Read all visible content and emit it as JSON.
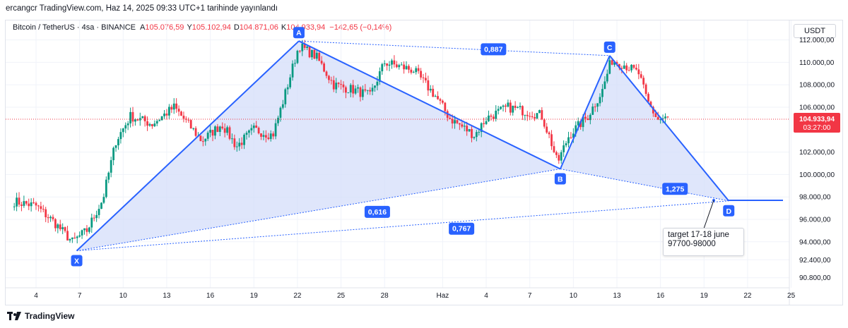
{
  "header": {
    "publish_line": "ercangcr TradingView.com, Haz 14, 2025 09:33 UTC+1 tarihinde yayınlandı"
  },
  "legend": {
    "symbol": "Bitcoin / TetherUS · 4sa · BINANCE",
    "open_label": "A",
    "open_value": "105.076,59",
    "high_label": "Y",
    "high_value": "105.102,94",
    "low_label": "D",
    "low_value": "104.871,06",
    "close_label": "K",
    "close_value": "104.933,94",
    "change": "−142,65 (−0,14%)"
  },
  "price_axis": {
    "currency": "USDT",
    "current_price": "104.933,94",
    "countdown": "03:27:00"
  },
  "annotation": {
    "line1": "target 17-18 june",
    "line2": "97700-98000"
  },
  "footer": {
    "brand": "TradingView"
  },
  "colors": {
    "up": "#089981",
    "down": "#f23645",
    "pattern": "#2962ff",
    "pattern_fill": "#d4ddfa",
    "price_line": "#f23645"
  },
  "chart_data": {
    "type": "candlestick",
    "title": "Bitcoin / TetherUS · 4sa · BINANCE",
    "ylim": [
      89900,
      113800
    ],
    "y_ticks": [
      "112.000,00",
      "110.000,00",
      "108.000,00",
      "106.000,00",
      "102.000,00",
      "100.000,00",
      "98.000,00",
      "96.000,00",
      "94.000,00",
      "92.400,00",
      "90.800,00"
    ],
    "y_tick_values": [
      112000,
      110000,
      108000,
      106000,
      102000,
      100000,
      98000,
      96000,
      94000,
      92400,
      90800
    ],
    "x_ticks": [
      "4",
      "7",
      "10",
      "13",
      "16",
      "19",
      "22",
      "25",
      "28",
      "Haz",
      "4",
      "7",
      "10",
      "13",
      "16",
      "19",
      "22",
      "25"
    ],
    "x_tick_days": [
      0,
      3,
      6,
      9,
      12,
      15,
      18,
      21,
      24,
      28,
      31,
      34,
      37,
      40,
      43,
      46,
      49,
      52
    ],
    "current_price": 104933.94,
    "pattern": {
      "name": "harmonic",
      "points": [
        {
          "label": "X",
          "day": 2.8,
          "price": 93200
        },
        {
          "label": "A",
          "day": 18.1,
          "price": 111900
        },
        {
          "label": "B",
          "day": 36.1,
          "price": 100500
        },
        {
          "label": "C",
          "day": 39.5,
          "price": 110600
        },
        {
          "label": "D",
          "day": 47.7,
          "price": 97650
        }
      ],
      "ratios": [
        {
          "value": "0,887",
          "day": 31.5,
          "price": 111200
        },
        {
          "value": "0,616",
          "day": 23.5,
          "price": 96700
        },
        {
          "value": "0,767",
          "day": 29.3,
          "price": 95200
        },
        {
          "value": "1,275",
          "day": 44.0,
          "price": 98750
        }
      ],
      "target_line_price": 97700
    },
    "anchors": [
      [
        -1.5,
        97600
      ],
      [
        0,
        97200
      ],
      [
        1.2,
        95800
      ],
      [
        2.5,
        94000
      ],
      [
        3.5,
        95000
      ],
      [
        4.6,
        97800
      ],
      [
        5.5,
        103000
      ],
      [
        6.5,
        105200
      ],
      [
        8,
        104500
      ],
      [
        9.5,
        106000
      ],
      [
        10.8,
        104000
      ],
      [
        11.4,
        103000
      ],
      [
        12.8,
        104500
      ],
      [
        13.8,
        102500
      ],
      [
        15,
        104000
      ],
      [
        16.3,
        103500
      ],
      [
        17,
        106500
      ],
      [
        18.1,
        111500
      ],
      [
        19.3,
        110500
      ],
      [
        20.5,
        108000
      ],
      [
        22,
        107500
      ],
      [
        23,
        107000
      ],
      [
        24,
        110000
      ],
      [
        26,
        109300
      ],
      [
        27.5,
        107000
      ],
      [
        28.5,
        105000
      ],
      [
        30.2,
        103500
      ],
      [
        31,
        105000
      ],
      [
        32.5,
        106000
      ],
      [
        34.8,
        105300
      ],
      [
        35.4,
        103200
      ],
      [
        35.9,
        101000
      ],
      [
        36.7,
        103500
      ],
      [
        38,
        105200
      ],
      [
        39,
        107500
      ],
      [
        39.6,
        110200
      ],
      [
        40.5,
        109800
      ],
      [
        41.5,
        109000
      ],
      [
        42.1,
        106500
      ],
      [
        42.8,
        104900
      ],
      [
        43.6,
        105000
      ]
    ]
  }
}
